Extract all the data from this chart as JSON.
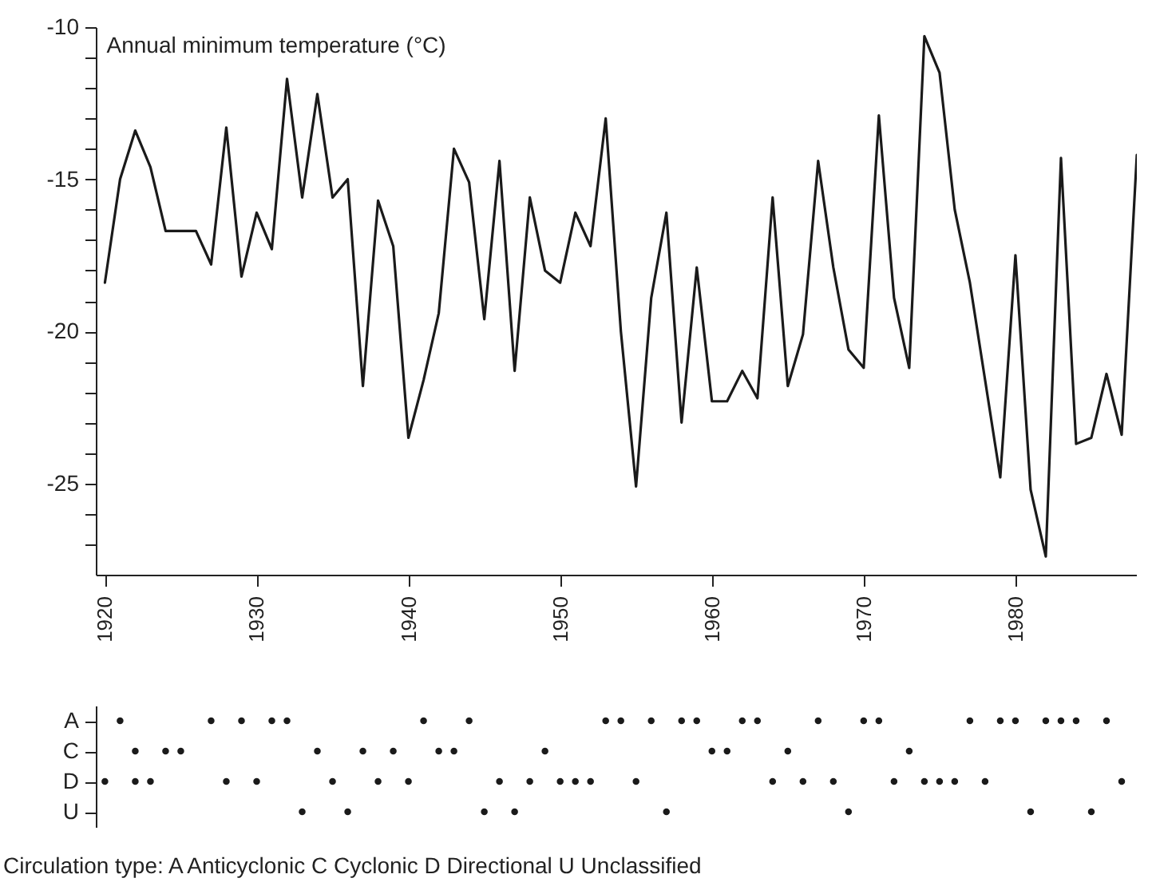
{
  "chart_data": [
    {
      "type": "line",
      "title": "Annual minimum temperature (°C)",
      "color": "#1a1a1a",
      "marker": "none",
      "line_style": "solid",
      "x": [
        1920,
        1921,
        1922,
        1923,
        1924,
        1925,
        1926,
        1927,
        1928,
        1929,
        1930,
        1931,
        1932,
        1933,
        1934,
        1935,
        1936,
        1937,
        1938,
        1939,
        1940,
        1941,
        1942,
        1943,
        1944,
        1945,
        1946,
        1947,
        1948,
        1949,
        1950,
        1951,
        1952,
        1953,
        1954,
        1955,
        1956,
        1957,
        1958,
        1959,
        1960,
        1961,
        1962,
        1963,
        1964,
        1965,
        1966,
        1967,
        1968,
        1969,
        1970,
        1971,
        1972,
        1973,
        1974,
        1975,
        1976,
        1977,
        1978,
        1979,
        1980,
        1981,
        1982,
        1983,
        1984,
        1985,
        1986,
        1987,
        1988
      ],
      "values": [
        -18.4,
        -15.0,
        -13.4,
        -14.6,
        -16.7,
        -16.7,
        -16.7,
        -17.8,
        -13.3,
        -18.2,
        -16.1,
        -17.3,
        -11.7,
        -15.6,
        -12.2,
        -15.6,
        -15.0,
        -21.8,
        -15.7,
        -17.2,
        -23.5,
        -21.6,
        -19.4,
        -14.0,
        -15.1,
        -19.6,
        -14.4,
        -21.3,
        -15.6,
        -18.0,
        -18.4,
        -16.1,
        -17.2,
        -13.0,
        -20.0,
        -25.1,
        -18.9,
        -16.1,
        -23.0,
        -17.9,
        -22.3,
        -22.3,
        -21.3,
        -22.2,
        -15.6,
        -21.8,
        -20.1,
        -14.4,
        -17.9,
        -20.6,
        -21.2,
        -12.9,
        -18.9,
        -21.2,
        -10.3,
        -11.5,
        -16.0,
        -18.4,
        -21.6,
        -24.8,
        -17.5,
        -25.2,
        -27.4,
        -14.3,
        -23.7,
        -23.5,
        -21.4,
        -23.4,
        -14.2
      ],
      "xlim": [
        1919.4,
        1988
      ],
      "ylim": [
        -28,
        -10
      ],
      "xticks": [
        1920,
        1930,
        1940,
        1950,
        1960,
        1970,
        1980
      ],
      "yticks": [
        -10,
        {
          "value": -11,
          "label": null
        },
        {
          "value": -12,
          "label": null
        },
        {
          "value": -13,
          "label": null
        },
        {
          "value": -14,
          "label": null
        },
        -15,
        {
          "value": -16,
          "label": null
        },
        {
          "value": -17,
          "label": null
        },
        {
          "value": -18,
          "label": null
        },
        {
          "value": -19,
          "label": null
        },
        -20,
        {
          "value": -21,
          "label": null
        },
        {
          "value": -22,
          "label": null
        },
        {
          "value": -23,
          "label": null
        },
        {
          "value": -24,
          "label": null
        },
        -25,
        {
          "value": -26,
          "label": null
        },
        {
          "value": -27,
          "label": null
        }
      ]
    },
    {
      "type": "scatter",
      "color": "#1a1a1a",
      "marker": "circle",
      "tick_labels": "y",
      "orientation": "horizontal",
      "categories": [
        "A",
        "C",
        "D",
        "U"
      ],
      "series": [
        {
          "values": [
            1921,
            1922,
            1920,
            1933
          ]
        },
        {
          "values": [
            1927,
            1924,
            1922,
            1936
          ]
        },
        {
          "values": [
            1929,
            1925,
            1923,
            1945
          ]
        },
        {
          "values": [
            1931,
            1934,
            1928,
            1947
          ]
        },
        {
          "values": [
            1932,
            1937,
            1930,
            1957
          ]
        },
        {
          "values": [
            1941,
            1939,
            1935,
            1969
          ]
        },
        {
          "values": [
            1944,
            1942,
            1938,
            1981
          ]
        },
        {
          "values": [
            1953,
            1943,
            1940,
            1985
          ]
        },
        {
          "values": [
            1954,
            1949,
            1946,
            null
          ]
        },
        {
          "values": [
            1956,
            1960,
            1948,
            null
          ]
        },
        {
          "values": [
            1958,
            1961,
            1950,
            null
          ]
        },
        {
          "values": [
            1959,
            1965,
            1951,
            null
          ]
        },
        {
          "values": [
            1962,
            1973,
            1952,
            null
          ]
        },
        {
          "values": [
            1963,
            null,
            1955,
            null
          ]
        },
        {
          "values": [
            1967,
            null,
            1964,
            null
          ]
        },
        {
          "values": [
            1970,
            null,
            1966,
            null
          ]
        },
        {
          "values": [
            1971,
            null,
            1968,
            null
          ]
        },
        {
          "values": [
            1977,
            null,
            1972,
            null
          ]
        },
        {
          "values": [
            1979,
            null,
            1974,
            null
          ]
        },
        {
          "values": [
            1980,
            null,
            1975,
            null
          ]
        },
        {
          "values": [
            1982,
            null,
            1976,
            null
          ]
        },
        {
          "values": [
            1983,
            null,
            1978,
            null
          ]
        },
        {
          "values": [
            1984,
            null,
            1987,
            null
          ]
        },
        {
          "values": [
            1986,
            null,
            null,
            null
          ]
        }
      ],
      "xlim": [
        1919.4,
        1988
      ],
      "annotations": [
        "Circulation type: A Anticyclonic   C Cyclonic   D Directional   U Unclassified"
      ]
    }
  ]
}
